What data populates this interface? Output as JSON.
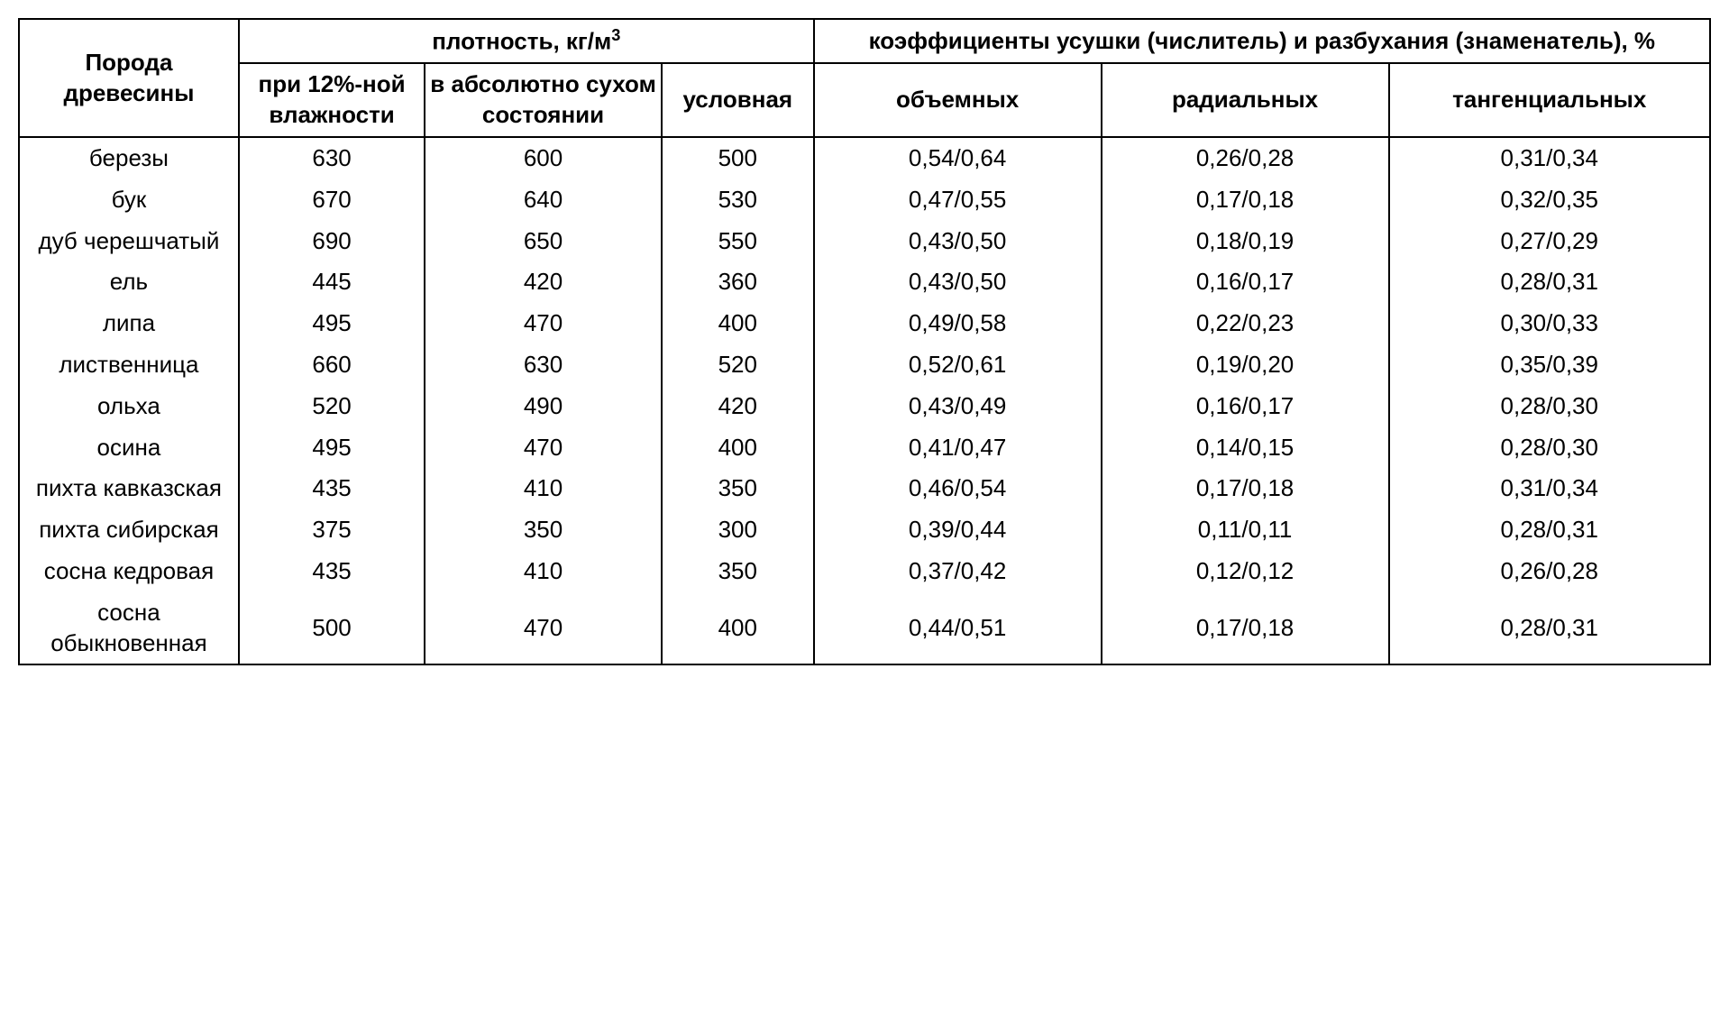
{
  "table": {
    "type": "table",
    "background_color": "#ffffff",
    "border_color": "#000000",
    "text_color": "#000000",
    "font_family": "Arial",
    "header_fontsize": 26,
    "cell_fontsize": 26,
    "border_width": 2,
    "columns": [
      {
        "key": "species",
        "width_pct": 13
      },
      {
        "key": "density_12",
        "width_pct": 11
      },
      {
        "key": "density_dry",
        "width_pct": 14
      },
      {
        "key": "density_cond",
        "width_pct": 9
      },
      {
        "key": "coef_vol",
        "width_pct": 17
      },
      {
        "key": "coef_rad",
        "width_pct": 17
      },
      {
        "key": "coef_tan",
        "width_pct": 19
      }
    ],
    "headers": {
      "species": "Порода древесины",
      "density_group": "плотность, кг/м",
      "density_group_sup": "3",
      "density_12": "при 12%-ной влажности",
      "density_dry": "в абсолютно сухом состоянии",
      "density_cond": "условная",
      "coef_group": "коэффициенты усушки (числитель) и разбухания (знаменатель), %",
      "coef_vol": "объемных",
      "coef_rad": "радиальных",
      "coef_tan": "тангенциальных"
    },
    "rows": [
      {
        "species": "березы",
        "d12": "630",
        "ddry": "600",
        "dcond": "500",
        "cvol": "0,54/0,64",
        "crad": "0,26/0,28",
        "ctan": "0,31/0,34"
      },
      {
        "species": "бук",
        "d12": "670",
        "ddry": "640",
        "dcond": "530",
        "cvol": "0,47/0,55",
        "crad": "0,17/0,18",
        "ctan": "0,32/0,35"
      },
      {
        "species": "дуб черешчатый",
        "d12": "690",
        "ddry": "650",
        "dcond": "550",
        "cvol": "0,43/0,50",
        "crad": "0,18/0,19",
        "ctan": "0,27/0,29"
      },
      {
        "species": "ель",
        "d12": "445",
        "ddry": "420",
        "dcond": "360",
        "cvol": "0,43/0,50",
        "crad": "0,16/0,17",
        "ctan": "0,28/0,31"
      },
      {
        "species": "липа",
        "d12": "495",
        "ddry": "470",
        "dcond": "400",
        "cvol": "0,49/0,58",
        "crad": "0,22/0,23",
        "ctan": "0,30/0,33"
      },
      {
        "species": "лиственница",
        "d12": "660",
        "ddry": "630",
        "dcond": "520",
        "cvol": "0,52/0,61",
        "crad": "0,19/0,20",
        "ctan": "0,35/0,39"
      },
      {
        "species": "ольха",
        "d12": "520",
        "ddry": "490",
        "dcond": "420",
        "cvol": "0,43/0,49",
        "crad": "0,16/0,17",
        "ctan": "0,28/0,30"
      },
      {
        "species": "осина",
        "d12": "495",
        "ddry": "470",
        "dcond": "400",
        "cvol": "0,41/0,47",
        "crad": "0,14/0,15",
        "ctan": "0,28/0,30"
      },
      {
        "species": "пихта кавказская",
        "d12": "435",
        "ddry": "410",
        "dcond": "350",
        "cvol": "0,46/0,54",
        "crad": "0,17/0,18",
        "ctan": "0,31/0,34"
      },
      {
        "species": "пихта сибирская",
        "d12": "375",
        "ddry": "350",
        "dcond": "300",
        "cvol": "0,39/0,44",
        "crad": "0,11/0,11",
        "ctan": "0,28/0,31"
      },
      {
        "species": "сосна кедровая",
        "d12": "435",
        "ddry": "410",
        "dcond": "350",
        "cvol": "0,37/0,42",
        "crad": "0,12/0,12",
        "ctan": "0,26/0,28"
      },
      {
        "species": "сосна обыкновенная",
        "d12": "500",
        "ddry": "470",
        "dcond": "400",
        "cvol": "0,44/0,51",
        "crad": "0,17/0,18",
        "ctan": "0,28/0,31"
      }
    ]
  }
}
